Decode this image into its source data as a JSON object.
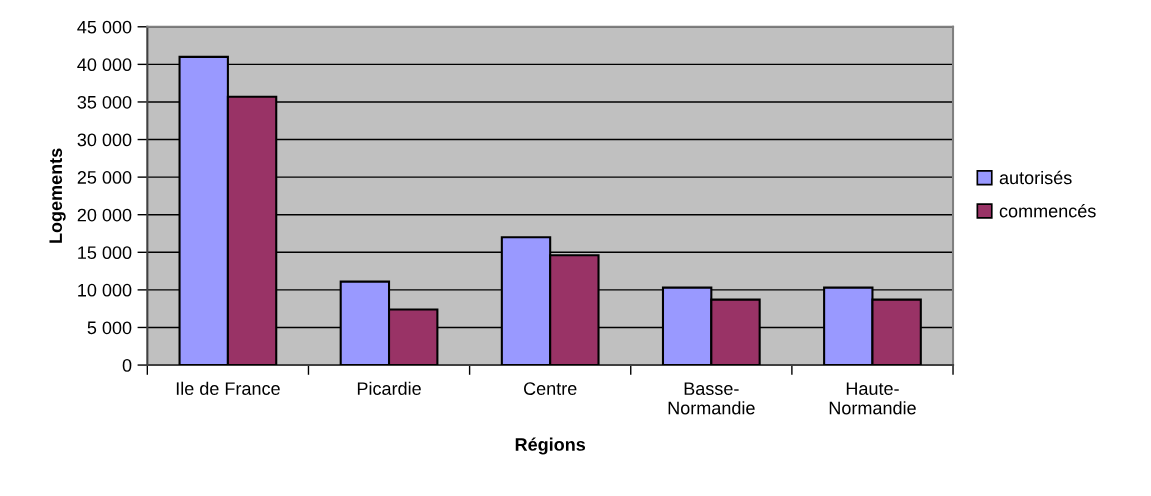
{
  "chart_data": {
    "type": "bar",
    "xlabel": "Régions",
    "ylabel": "Logements",
    "categories": [
      "Ile de France",
      "Picardie",
      "Centre",
      "Basse-\nNormandie",
      "Haute-\nNormandie"
    ],
    "series": [
      {
        "name": "autorisés",
        "color": "#9999ff",
        "values": [
          41000,
          11100,
          17000,
          10300,
          10300
        ]
      },
      {
        "name": "commencés",
        "color": "#993366",
        "values": [
          35700,
          7400,
          14600,
          8700,
          8700
        ]
      }
    ],
    "ylim": [
      0,
      45000
    ],
    "yticks": [
      0,
      {
        "value": 5000,
        "label": "5 000"
      },
      {
        "value": 10000,
        "label": "10 000"
      },
      {
        "value": 15000,
        "label": "15 000"
      },
      {
        "value": 20000,
        "label": "20 000"
      },
      {
        "value": 25000,
        "label": "25 000"
      },
      {
        "value": 30000,
        "label": "30 000"
      },
      {
        "value": 35000,
        "label": "35 000"
      },
      {
        "value": 40000,
        "label": "40 000"
      },
      {
        "value": 45000,
        "label": "45 000"
      }
    ],
    "grid": "y",
    "legend": "right"
  }
}
